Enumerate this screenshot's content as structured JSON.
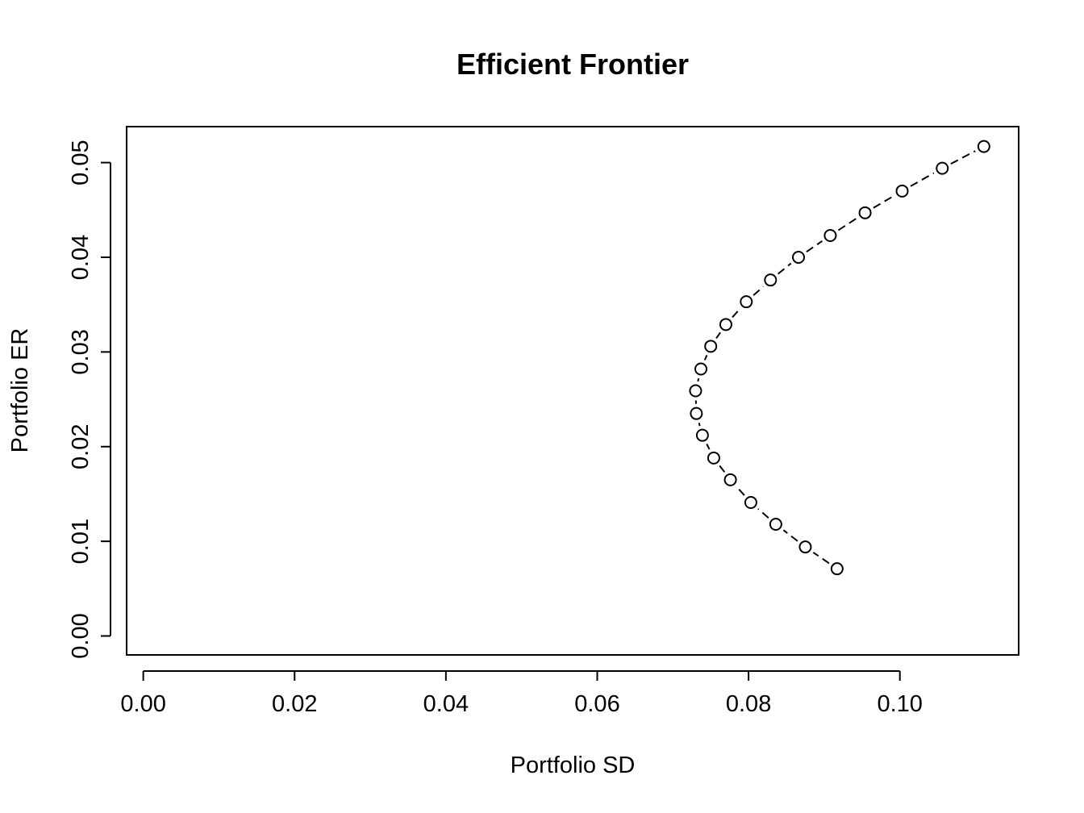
{
  "chart_data": {
    "type": "scatter",
    "title": "Efficient Frontier",
    "xlabel": "Portfolio SD",
    "ylabel": "Portfolio ER",
    "xlim": [
      -0.0022,
      0.1157
    ],
    "ylim": [
      -0.002,
      0.0538
    ],
    "xticks": [
      0.0,
      0.02,
      0.04,
      0.06,
      0.08,
      0.1
    ],
    "xtick_labels": [
      "0.00",
      "0.02",
      "0.04",
      "0.06",
      "0.08",
      "0.10"
    ],
    "yticks": [
      0.0,
      0.01,
      0.02,
      0.03,
      0.04,
      0.05
    ],
    "ytick_labels": [
      "0.00",
      "0.01",
      "0.02",
      "0.03",
      "0.04",
      "0.05"
    ],
    "grid": false,
    "line_style": "dashed",
    "marker": "open-circle",
    "series": [
      {
        "points": [
          {
            "x": 0.0917,
            "y": 0.0071
          },
          {
            "x": 0.0875,
            "y": 0.0094
          },
          {
            "x": 0.0836,
            "y": 0.0118
          },
          {
            "x": 0.0803,
            "y": 0.0141
          },
          {
            "x": 0.0776,
            "y": 0.0165
          },
          {
            "x": 0.0754,
            "y": 0.0188
          },
          {
            "x": 0.0739,
            "y": 0.0212
          },
          {
            "x": 0.0731,
            "y": 0.0235
          },
          {
            "x": 0.073,
            "y": 0.0259
          },
          {
            "x": 0.0737,
            "y": 0.0282
          },
          {
            "x": 0.075,
            "y": 0.0306
          },
          {
            "x": 0.077,
            "y": 0.0329
          },
          {
            "x": 0.0797,
            "y": 0.0353
          },
          {
            "x": 0.0829,
            "y": 0.0376
          },
          {
            "x": 0.0866,
            "y": 0.04
          },
          {
            "x": 0.0908,
            "y": 0.0423
          },
          {
            "x": 0.0954,
            "y": 0.0447
          },
          {
            "x": 0.1003,
            "y": 0.047
          },
          {
            "x": 0.1056,
            "y": 0.0494
          },
          {
            "x": 0.1111,
            "y": 0.0517
          }
        ]
      }
    ]
  }
}
